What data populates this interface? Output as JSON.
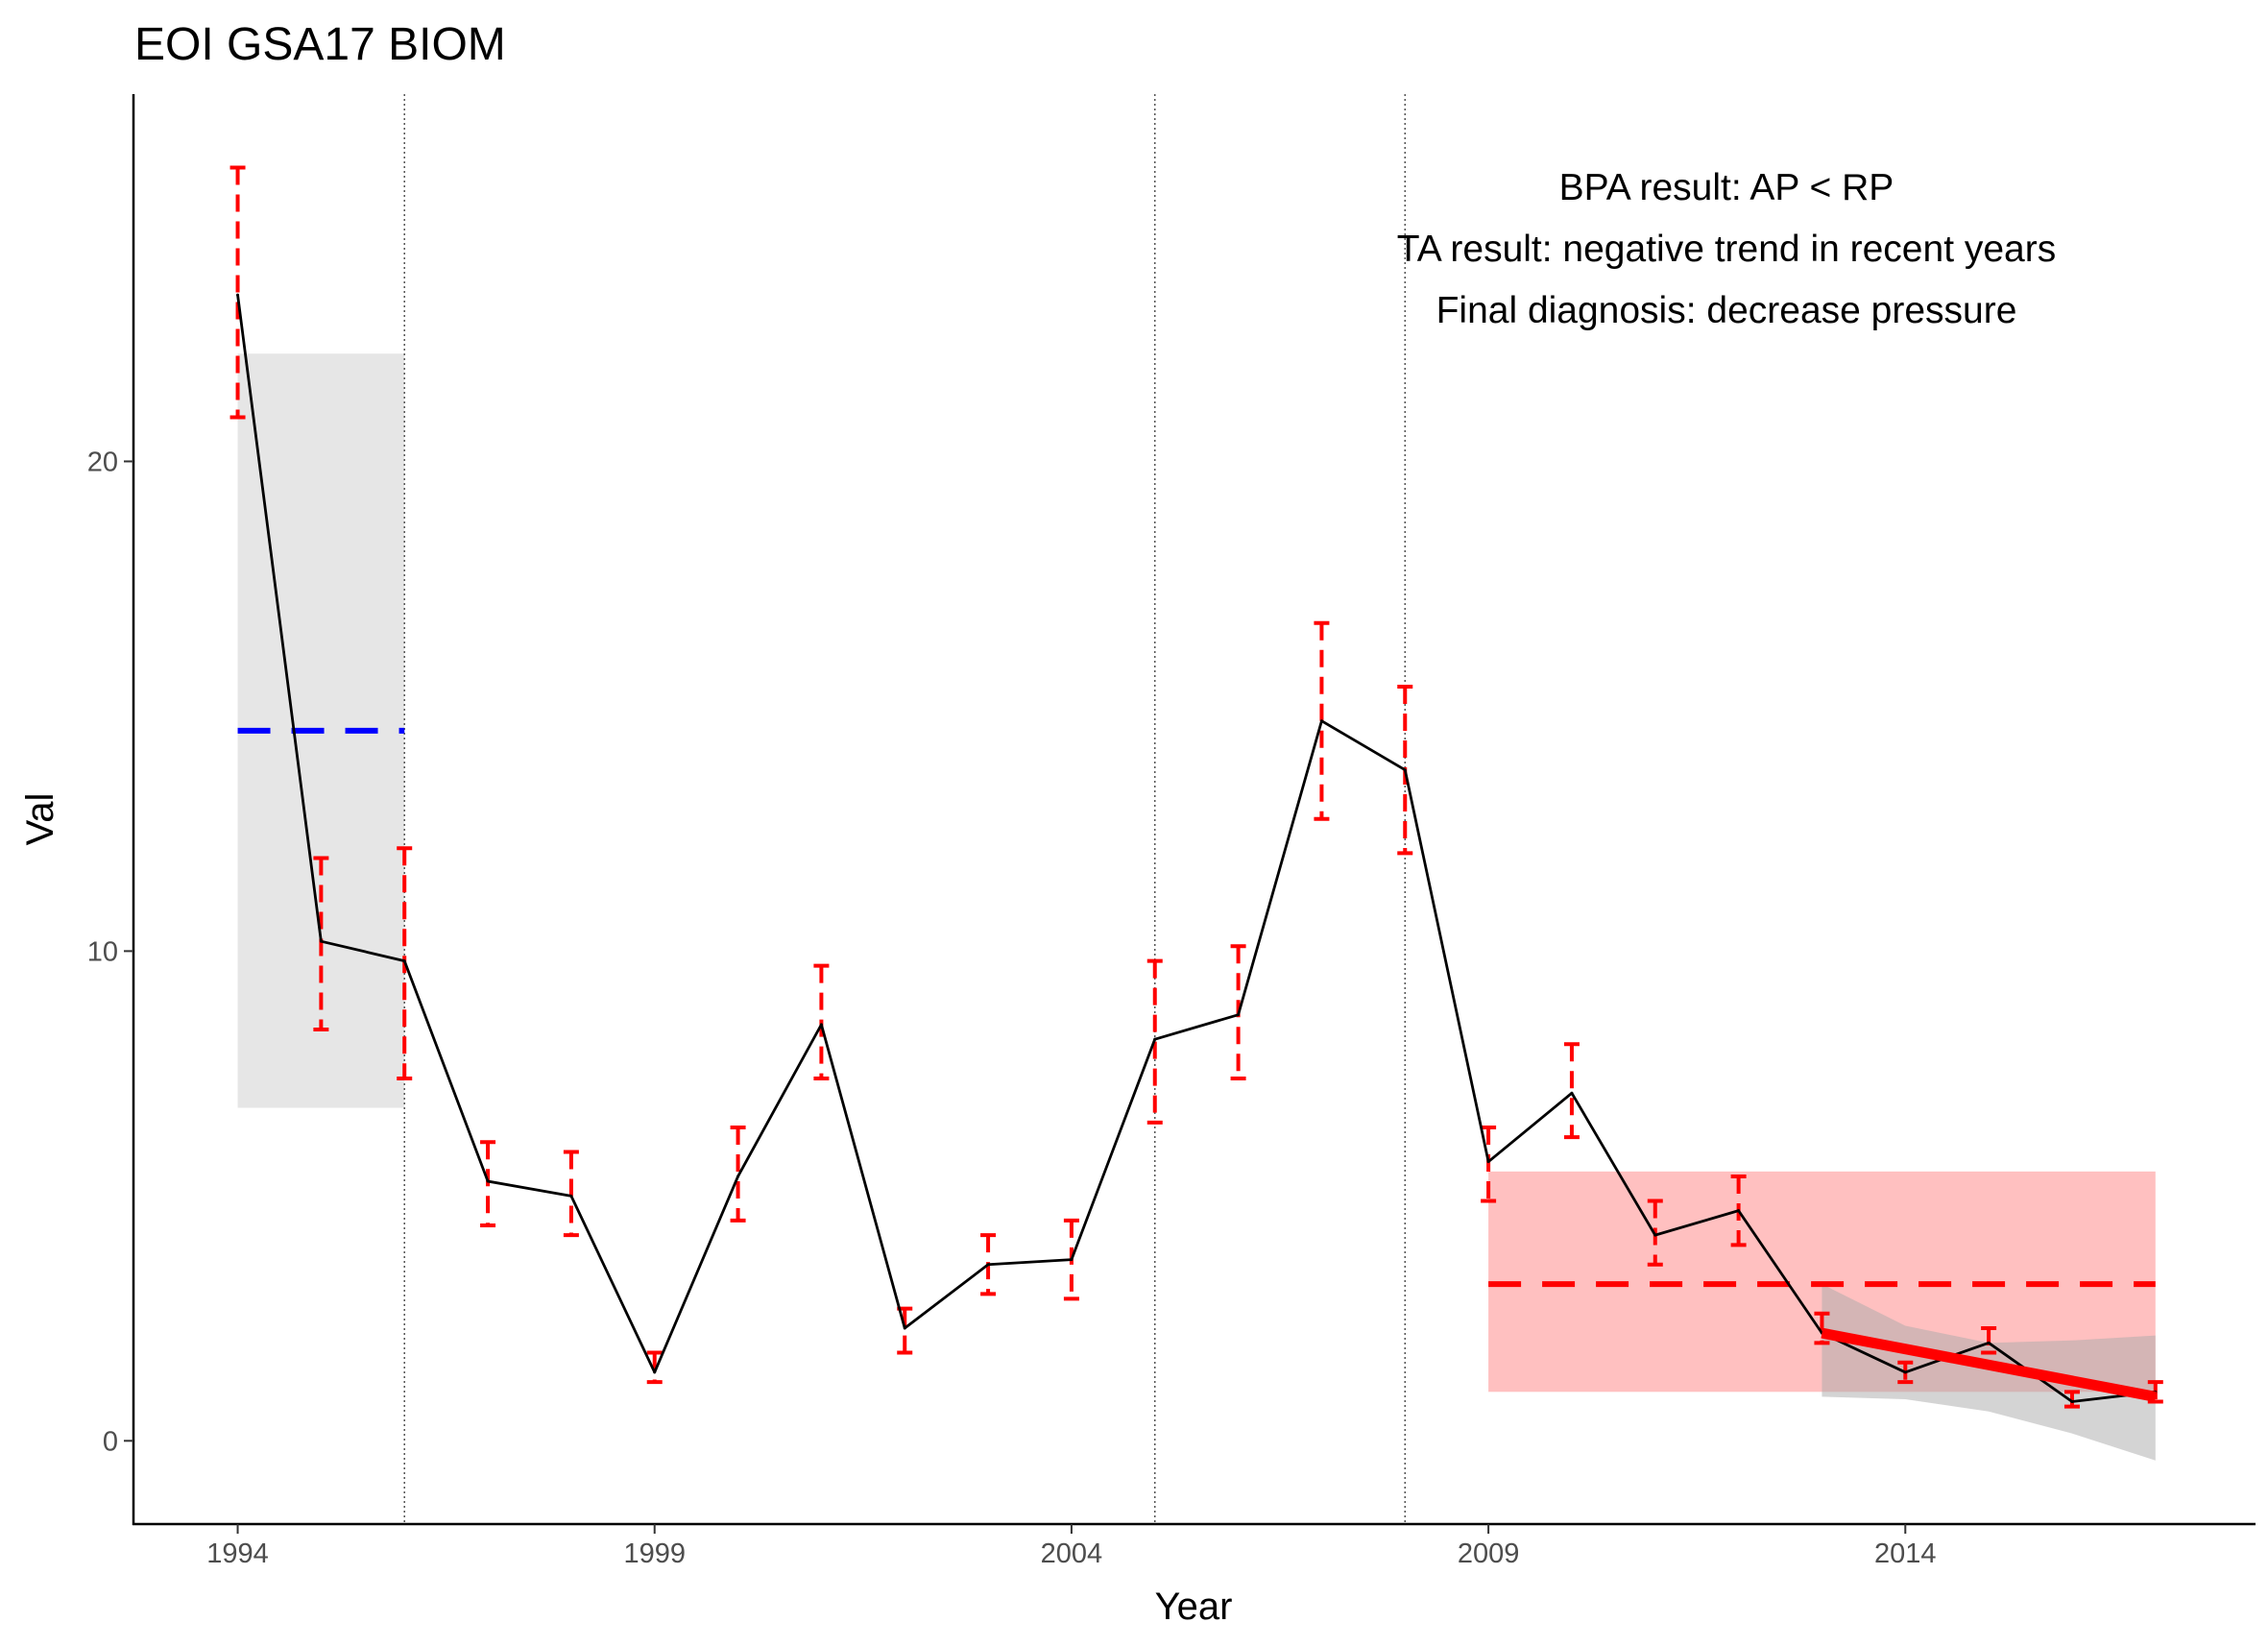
{
  "chart_data": {
    "type": "line",
    "title": "EOI GSA17 BIOM",
    "xlabel": "Year",
    "ylabel": "Val",
    "xlim": [
      1992.75,
      2018.2
    ],
    "ylim": [
      -1.7,
      27.5
    ],
    "x_ticks": [
      1994,
      1999,
      2004,
      2009,
      2014
    ],
    "x_tick_labels": [
      "1994",
      "1999",
      "2004",
      "2009",
      "2014"
    ],
    "y_ticks": [
      0,
      10,
      20
    ],
    "y_tick_labels": [
      "0",
      "10",
      "20"
    ],
    "grid": false,
    "legend": "none",
    "series": [
      {
        "values": [
          {
            "x": 1994,
            "y": 23.4,
            "lo": 20.9,
            "hi": 26.0
          },
          {
            "x": 1995,
            "y": 10.2,
            "lo": 8.4,
            "hi": 11.9
          },
          {
            "x": 1996,
            "y": 9.8,
            "lo": 7.4,
            "hi": 12.1
          },
          {
            "x": 1997,
            "y": 5.3,
            "lo": 4.4,
            "hi": 6.1
          },
          {
            "x": 1998,
            "y": 5.0,
            "lo": 4.2,
            "hi": 5.9
          },
          {
            "x": 1999,
            "y": 1.4,
            "lo": 1.2,
            "hi": 1.8
          },
          {
            "x": 2000,
            "y": 5.4,
            "lo": 4.5,
            "hi": 6.4
          },
          {
            "x": 2001,
            "y": 8.5,
            "lo": 7.4,
            "hi": 9.7
          },
          {
            "x": 2002,
            "y": 2.3,
            "lo": 1.8,
            "hi": 2.7
          },
          {
            "x": 2003,
            "y": 3.6,
            "lo": 3.0,
            "hi": 4.2
          },
          {
            "x": 2004,
            "y": 3.7,
            "lo": 2.9,
            "hi": 4.5
          },
          {
            "x": 2005,
            "y": 8.2,
            "lo": 6.5,
            "hi": 9.8
          },
          {
            "x": 2006,
            "y": 8.7,
            "lo": 7.4,
            "hi": 10.1
          },
          {
            "x": 2007,
            "y": 14.7,
            "lo": 12.7,
            "hi": 16.7
          },
          {
            "x": 2008,
            "y": 13.7,
            "lo": 12.0,
            "hi": 15.4
          },
          {
            "x": 2009,
            "y": 5.7,
            "lo": 4.9,
            "hi": 6.4
          },
          {
            "x": 2010,
            "y": 7.1,
            "lo": 6.2,
            "hi": 8.1
          },
          {
            "x": 2011,
            "y": 4.2,
            "lo": 3.6,
            "hi": 4.9
          },
          {
            "x": 2012,
            "y": 4.7,
            "lo": 4.0,
            "hi": 5.4
          },
          {
            "x": 2013,
            "y": 2.2,
            "lo": 2.0,
            "hi": 2.6
          },
          {
            "x": 2014,
            "y": 1.4,
            "lo": 1.2,
            "hi": 1.6
          },
          {
            "x": 2015,
            "y": 2.0,
            "lo": 1.8,
            "hi": 2.3
          },
          {
            "x": 2016,
            "y": 0.8,
            "lo": 0.7,
            "hi": 1.0
          },
          {
            "x": 2017,
            "y": 1.0,
            "lo": 0.8,
            "hi": 1.2
          }
        ]
      }
    ],
    "vertical_lines": [
      1996,
      2005,
      2008
    ],
    "reference_period": {
      "x": [
        1994,
        1996
      ],
      "ymin": 6.8,
      "ymax": 22.2,
      "mean": 14.5
    },
    "assessment_period": {
      "x": [
        2009,
        2017
      ],
      "ymin": 1.0,
      "ymax": 5.5,
      "mean": 3.2
    },
    "trend": {
      "x": [
        2013,
        2017
      ],
      "y": [
        2.2,
        0.9
      ],
      "ci_x": [
        2013,
        2014,
        2015,
        2016,
        2017
      ],
      "ci_lo": [
        0.9,
        0.85,
        0.6,
        0.15,
        -0.4
      ],
      "ci_hi": [
        3.2,
        2.35,
        2.0,
        2.05,
        2.15
      ]
    },
    "annotations": [
      "BPA result: AP < RP",
      "TA result: negative trend in recent years",
      "Final diagnosis: decrease pressure"
    ],
    "colors": {
      "line": "#000000",
      "errorbar": "#ff0000",
      "reference_band": "#e6e6e6",
      "reference_mean": "#0000ff",
      "assessment_band": "#ffc0c0",
      "assessment_mean": "#ff0000",
      "trend_line": "#ff0000",
      "trend_ci": "#aaaaaa",
      "vline": "#555555",
      "axis": "#000000",
      "tick_label": "#4d4d4d"
    }
  }
}
